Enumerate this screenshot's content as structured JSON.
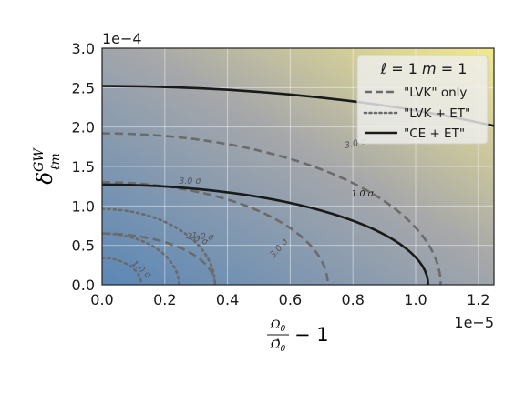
{
  "chart_data": {
    "type": "contour",
    "title": "",
    "xlabel": "Ω₀/Ω̂₀ − 1",
    "ylabel": "δ_ℓm^GW",
    "xlim": [
      0,
      1.25e-05
    ],
    "ylim": [
      0,
      0.0003
    ],
    "x_offset_label": "1e−5",
    "y_offset_label": "1e−4",
    "xticks": [
      "0.0",
      "0.2",
      "0.4",
      "0.6",
      "0.8",
      "1.0",
      "1.2"
    ],
    "yticks": [
      "0.0",
      "0.5",
      "1.0",
      "1.5",
      "2.0",
      "2.5",
      "3.0"
    ],
    "grid": true,
    "background": "gradient from blue (origin) to yellow (top-right)",
    "legend": {
      "placement": "top-right",
      "title_parts": {
        "l": "ℓ",
        "eq1": " = 1 ",
        "m": "m",
        "eq2": " = 1"
      },
      "entries": [
        {
          "label": "\"LVK\" only",
          "style": "dashed",
          "color": "#6b6b6b"
        },
        {
          "label": "\"LVK + ET\"",
          "style": "dotted",
          "color": "#6b6b6b"
        },
        {
          "label": "\"CE + ET\"",
          "style": "solid",
          "color": "#1a1a1a"
        }
      ]
    },
    "contours": [
      {
        "series": "\"LVK\" only",
        "level": "1.0 σ",
        "x_intercept": 3.6e-06,
        "y_intercept": 6.5e-05,
        "color": "#6b6b6b",
        "dash": "dashed"
      },
      {
        "series": "\"LVK\" only",
        "level": "3.0 σ",
        "x_intercept": 7.2e-06,
        "y_intercept": 0.00013,
        "color": "#6b6b6b",
        "dash": "dashed"
      },
      {
        "series": "\"LVK\" only",
        "level": "2.0 σ",
        "x_intercept": 1.08e-05,
        "y_intercept": 0.000192,
        "color": "#6b6b6b",
        "dash": "dashed"
      },
      {
        "series": "\"LVK + ET\"",
        "level": "1.0 σ",
        "x_intercept": 1.25e-06,
        "y_intercept": 3.4e-05,
        "color": "#6b6b6b",
        "dash": "dotted"
      },
      {
        "series": "\"LVK + ET\"",
        "level": "2.0 σ",
        "x_intercept": 2.45e-06,
        "y_intercept": 6.5e-05,
        "color": "#6b6b6b",
        "dash": "dotted"
      },
      {
        "series": "\"LVK + ET\"",
        "level": "3.0 σ",
        "x_intercept": 3.6e-06,
        "y_intercept": 9.6e-05,
        "color": "#6b6b6b",
        "dash": "dotted"
      },
      {
        "series": "\"CE + ET\"",
        "level": "1.0 σ",
        "x_intercept": 1.04e-05,
        "y_intercept": 0.000127,
        "color": "#1a1a1a",
        "dash": "solid"
      },
      {
        "series": "\"CE + ET\"",
        "level": "2.0 σ",
        "x_intercept": 2.08e-05,
        "y_intercept": 0.000252,
        "color": "#1a1a1a",
        "dash": "solid"
      }
    ],
    "contour_labels": [
      {
        "text": "1.0 σ",
        "x": 1.2e-06,
        "y": 1.7e-05,
        "rot": 40,
        "color": "#555555"
      },
      {
        "text": "2.0 σ",
        "x": 3e-06,
        "y": 5.5e-05,
        "rot": 18,
        "color": "#555555"
      },
      {
        "text": "1.0 σ",
        "x": 3.2e-06,
        "y": 5.8e-05,
        "rot": 5,
        "color": "#555555"
      },
      {
        "text": "3.0 σ",
        "x": 2.8e-06,
        "y": 0.000128,
        "rot": 0,
        "color": "#555555"
      },
      {
        "text": "3.0 σ",
        "x": 5.7e-06,
        "y": 4.4e-05,
        "rot": -48,
        "color": "#555555"
      },
      {
        "text": "1.0 σ",
        "x": 8.3e-06,
        "y": 0.000112,
        "rot": 0,
        "color": "#1a1a1a"
      },
      {
        "text": "3.0 σ",
        "x": 8.1e-06,
        "y": 0.000176,
        "rot": -12,
        "color": "#555555"
      },
      {
        "text": "2.0 σ",
        "x": 1.4e-05,
        "y": 0.000232,
        "rot": 0,
        "color": "#1a1a1a"
      }
    ]
  }
}
